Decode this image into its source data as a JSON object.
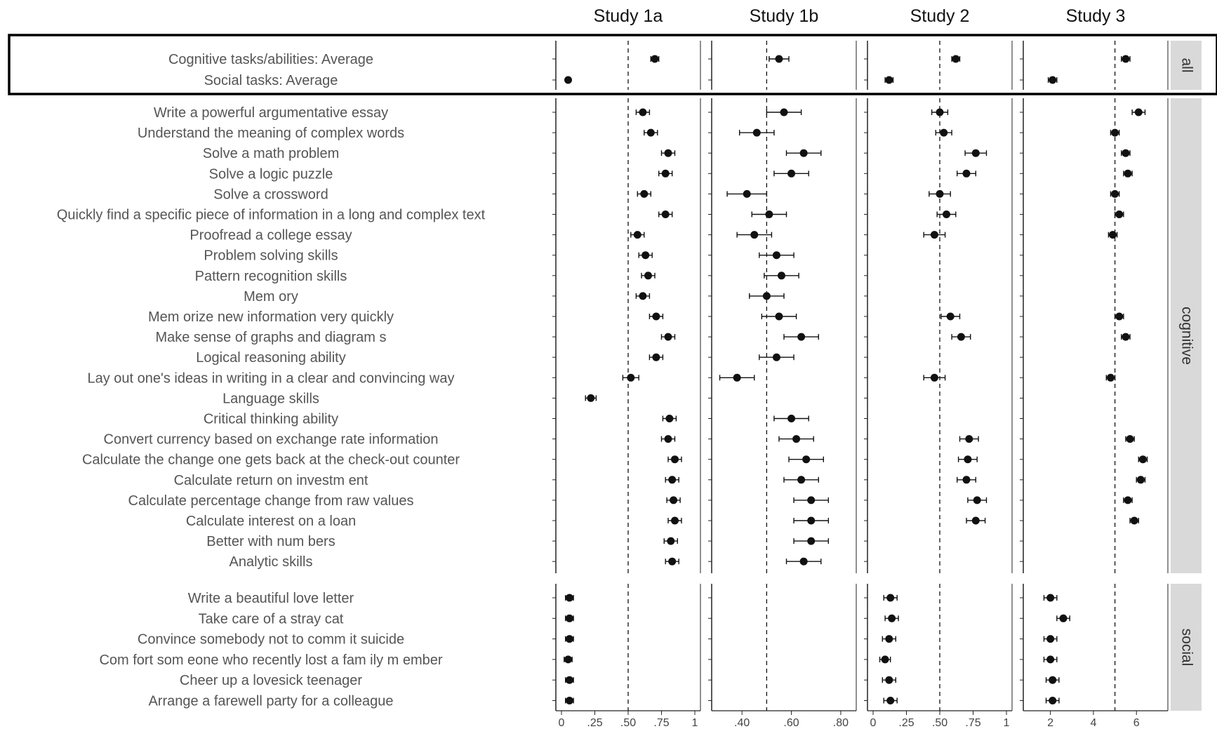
{
  "chart_data": {
    "type": "dot-plot with error bars",
    "reference_lines": {
      "style": "dashed",
      "x": [
        0.5,
        0.5,
        0.5,
        5
      ]
    },
    "panels": [
      {
        "title": "Study 1a",
        "xlim": [
          0,
          1
        ],
        "ticks": [
          0,
          0.25,
          0.5,
          0.75,
          1
        ],
        "tick_labels": [
          "0",
          ".25",
          ".50",
          ".75",
          "1"
        ]
      },
      {
        "title": "Study 1b",
        "xlim": [
          0.3,
          0.84
        ],
        "ticks": [
          0.4,
          0.6,
          0.8
        ],
        "tick_labels": [
          ".40",
          ".60",
          ".80"
        ]
      },
      {
        "title": "Study 2",
        "xlim": [
          0,
          1
        ],
        "ticks": [
          0,
          0.25,
          0.5,
          0.75,
          1
        ],
        "tick_labels": [
          "0",
          ".25",
          ".50",
          ".75",
          "1"
        ]
      },
      {
        "title": "Study 3",
        "xlim": [
          1,
          7.2
        ],
        "ticks": [
          2,
          4,
          6
        ],
        "tick_labels": [
          "2",
          "4",
          "6"
        ]
      }
    ],
    "groups": [
      {
        "strip": "all",
        "rows": [
          {
            "label": "Cognitive tasks/abilities: Average",
            "values": [
              [
                0.7,
                0.67,
                0.73
              ],
              [
                0.55,
                0.51,
                0.59
              ],
              [
                0.62,
                0.59,
                0.65
              ],
              [
                5.5,
                5.3,
                5.7
              ]
            ]
          },
          {
            "label": "Social tasks: Average",
            "values": [
              [
                0.05,
                0.04,
                0.06
              ],
              null,
              [
                0.12,
                0.09,
                0.15
              ],
              [
                2.1,
                1.9,
                2.3
              ]
            ]
          }
        ]
      },
      {
        "strip": "cognitive",
        "rows": [
          {
            "label": "Write a powerful argumentative essay",
            "values": [
              [
                0.61,
                0.56,
                0.66
              ],
              [
                0.57,
                0.5,
                0.64
              ],
              [
                0.5,
                0.44,
                0.56
              ],
              [
                6.1,
                5.8,
                6.4
              ]
            ]
          },
          {
            "label": "Understand the meaning of complex words",
            "values": [
              [
                0.67,
                0.62,
                0.72
              ],
              [
                0.46,
                0.39,
                0.53
              ],
              [
                0.53,
                0.47,
                0.59
              ],
              [
                5.0,
                4.8,
                5.2
              ]
            ]
          },
          {
            "label": "Solve a math problem",
            "values": [
              [
                0.8,
                0.75,
                0.85
              ],
              [
                0.65,
                0.58,
                0.72
              ],
              [
                0.77,
                0.69,
                0.85
              ],
              [
                5.5,
                5.3,
                5.7
              ]
            ]
          },
          {
            "label": "Solve a logic puzzle",
            "values": [
              [
                0.78,
                0.73,
                0.83
              ],
              [
                0.6,
                0.53,
                0.67
              ],
              [
                0.7,
                0.63,
                0.77
              ],
              [
                5.6,
                5.4,
                5.8
              ]
            ]
          },
          {
            "label": "Solve a crossword",
            "values": [
              [
                0.62,
                0.57,
                0.67
              ],
              [
                0.42,
                0.34,
                0.5
              ],
              [
                0.5,
                0.42,
                0.58
              ],
              [
                5.0,
                4.8,
                5.2
              ]
            ]
          },
          {
            "label": "Quickly find a specific piece of information in a long and complex text",
            "values": [
              [
                0.78,
                0.73,
                0.83
              ],
              [
                0.51,
                0.44,
                0.58
              ],
              [
                0.55,
                0.48,
                0.62
              ],
              [
                5.2,
                5.0,
                5.4
              ]
            ]
          },
          {
            "label": "Proofread a college essay",
            "values": [
              [
                0.57,
                0.52,
                0.62
              ],
              [
                0.45,
                0.38,
                0.52
              ],
              [
                0.46,
                0.38,
                0.54
              ],
              [
                4.9,
                4.7,
                5.1
              ]
            ]
          },
          {
            "label": "Problem  solving skills",
            "values": [
              [
                0.63,
                0.58,
                0.68
              ],
              [
                0.54,
                0.47,
                0.61
              ],
              null,
              null
            ]
          },
          {
            "label": "Pattern recognition skills",
            "values": [
              [
                0.65,
                0.6,
                0.7
              ],
              [
                0.56,
                0.49,
                0.63
              ],
              null,
              null
            ]
          },
          {
            "label": "Mem ory",
            "values": [
              [
                0.61,
                0.56,
                0.66
              ],
              [
                0.5,
                0.43,
                0.57
              ],
              null,
              null
            ]
          },
          {
            "label": "Mem orize new information very quickly",
            "values": [
              [
                0.71,
                0.66,
                0.76
              ],
              [
                0.55,
                0.48,
                0.62
              ],
              [
                0.58,
                0.51,
                0.65
              ],
              [
                5.2,
                5.0,
                5.4
              ]
            ]
          },
          {
            "label": "Make sense of graphs and diagram s",
            "values": [
              [
                0.8,
                0.75,
                0.85
              ],
              [
                0.64,
                0.57,
                0.71
              ],
              [
                0.66,
                0.59,
                0.73
              ],
              [
                5.5,
                5.3,
                5.7
              ]
            ]
          },
          {
            "label": "Logical reasoning ability",
            "values": [
              [
                0.71,
                0.66,
                0.76
              ],
              [
                0.54,
                0.47,
                0.61
              ],
              null,
              null
            ]
          },
          {
            "label": "Lay out one's ideas in writing in a clear and convincing way",
            "values": [
              [
                0.52,
                0.46,
                0.58
              ],
              [
                0.38,
                0.31,
                0.45
              ],
              [
                0.46,
                0.38,
                0.54
              ],
              [
                4.8,
                4.6,
                5.0
              ]
            ]
          },
          {
            "label": "Language skills",
            "values": [
              [
                0.22,
                0.18,
                0.26
              ],
              null,
              null,
              null
            ]
          },
          {
            "label": "Critical thinking ability",
            "values": [
              [
                0.81,
                0.76,
                0.86
              ],
              [
                0.6,
                0.53,
                0.67
              ],
              null,
              null
            ]
          },
          {
            "label": "Convert currency based on exchange rate information",
            "values": [
              [
                0.8,
                0.75,
                0.85
              ],
              [
                0.62,
                0.55,
                0.69
              ],
              [
                0.72,
                0.65,
                0.79
              ],
              [
                5.7,
                5.5,
                5.9
              ]
            ]
          },
          {
            "label": "Calculate the change one gets back at the check-out counter",
            "values": [
              [
                0.85,
                0.8,
                0.9
              ],
              [
                0.66,
                0.59,
                0.73
              ],
              [
                0.71,
                0.64,
                0.78
              ],
              [
                6.3,
                6.1,
                6.5
              ]
            ]
          },
          {
            "label": "Calculate return on investm ent",
            "values": [
              [
                0.83,
                0.78,
                0.88
              ],
              [
                0.64,
                0.57,
                0.71
              ],
              [
                0.7,
                0.63,
                0.77
              ],
              [
                6.2,
                6.0,
                6.4
              ]
            ]
          },
          {
            "label": "Calculate percentage change from raw values",
            "values": [
              [
                0.84,
                0.79,
                0.89
              ],
              [
                0.68,
                0.61,
                0.75
              ],
              [
                0.78,
                0.71,
                0.85
              ],
              [
                5.6,
                5.4,
                5.8
              ]
            ]
          },
          {
            "label": "Calculate interest on a loan",
            "values": [
              [
                0.85,
                0.8,
                0.9
              ],
              [
                0.68,
                0.61,
                0.75
              ],
              [
                0.77,
                0.7,
                0.84
              ],
              [
                5.9,
                5.7,
                6.1
              ]
            ]
          },
          {
            "label": "Better with num bers",
            "values": [
              [
                0.82,
                0.77,
                0.87
              ],
              [
                0.68,
                0.61,
                0.75
              ],
              null,
              null
            ]
          },
          {
            "label": "Analytic skills",
            "values": [
              [
                0.83,
                0.78,
                0.88
              ],
              [
                0.65,
                0.58,
                0.72
              ],
              null,
              null
            ]
          }
        ]
      },
      {
        "strip": "social",
        "rows": [
          {
            "label": "Write a beautiful love letter",
            "values": [
              [
                0.06,
                0.03,
                0.09
              ],
              null,
              [
                0.13,
                0.08,
                0.18
              ],
              [
                2.0,
                1.7,
                2.3
              ]
            ]
          },
          {
            "label": "Take care of a stray cat",
            "values": [
              [
                0.06,
                0.03,
                0.09
              ],
              null,
              [
                0.14,
                0.09,
                0.19
              ],
              [
                2.6,
                2.3,
                2.9
              ]
            ]
          },
          {
            "label": "Convince somebody not to comm it suicide",
            "values": [
              [
                0.06,
                0.03,
                0.09
              ],
              null,
              [
                0.12,
                0.07,
                0.17
              ],
              [
                2.0,
                1.7,
                2.3
              ]
            ]
          },
          {
            "label": "Com fort som eone who recently lost a fam ily m ember",
            "values": [
              [
                0.05,
                0.02,
                0.08
              ],
              null,
              [
                0.09,
                0.05,
                0.13
              ],
              [
                2.0,
                1.7,
                2.3
              ]
            ]
          },
          {
            "label": "Cheer up a lovesick teenager",
            "values": [
              [
                0.06,
                0.03,
                0.09
              ],
              null,
              [
                0.12,
                0.07,
                0.17
              ],
              [
                2.1,
                1.8,
                2.4
              ]
            ]
          },
          {
            "label": "Arrange a farewell party for a colleague",
            "values": [
              [
                0.06,
                0.03,
                0.09
              ],
              null,
              [
                0.13,
                0.08,
                0.18
              ],
              [
                2.1,
                1.8,
                2.4
              ]
            ]
          }
        ]
      }
    ]
  },
  "colors": {
    "point": "#111111",
    "errorbar": "#111111",
    "strip_bg": "#d9d9d9",
    "label": "#555555",
    "axis": "#222222"
  }
}
